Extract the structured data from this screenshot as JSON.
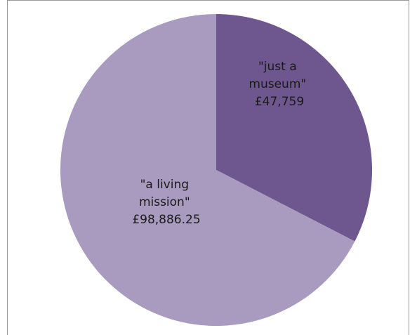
{
  "chart_data": {
    "type": "pie",
    "slices": [
      {
        "label_lines": [
          "\"just a",
          "museum\"",
          "£47,759"
        ],
        "value": 47759,
        "color": "#6e568f"
      },
      {
        "label_lines": [
          "\"a living",
          "mission\"",
          "£98,886.25"
        ],
        "value": 98886.25,
        "color": "#a89bbf"
      }
    ],
    "start": "12 o'clock, clockwise",
    "legend": "none"
  }
}
